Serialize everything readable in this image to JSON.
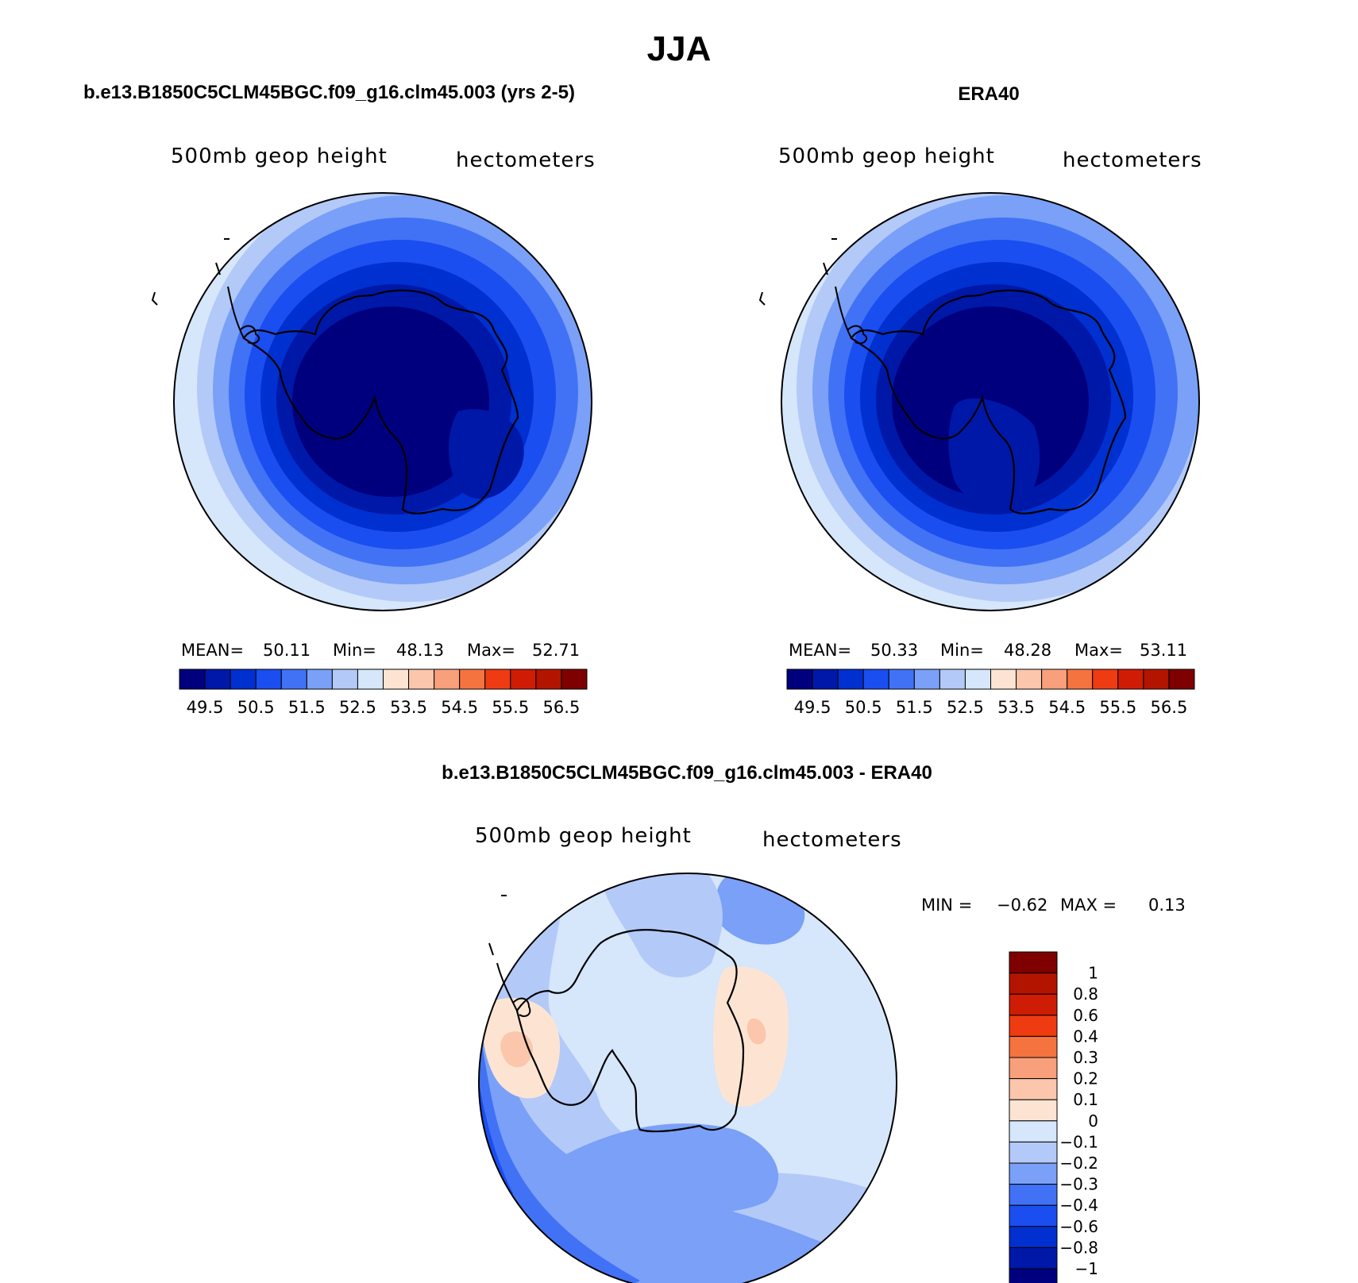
{
  "figure": {
    "season": "JJA"
  },
  "colors": {
    "abs_scale": [
      "#00007f",
      "#0018a8",
      "#0030cf",
      "#1a4ef0",
      "#4172f5",
      "#7aa0f7",
      "#b3c9f8",
      "#d6e6fb",
      "#fde4d2",
      "#fbc6ac",
      "#f89f7c",
      "#f5733f",
      "#ee3b12",
      "#cf1d05",
      "#b31400",
      "#7f0000"
    ],
    "diff_scale": [
      "#7f0000",
      "#b31400",
      "#cf1d05",
      "#ee3b12",
      "#f5733f",
      "#f89f7c",
      "#fbc6ac",
      "#fde4d2",
      "#d6e6fb",
      "#b3c9f8",
      "#7aa0f7",
      "#4172f5",
      "#1a4ef0",
      "#0030cf",
      "#0018a8",
      "#00007f"
    ],
    "coast": "#000000"
  },
  "chart_data": [
    {
      "type": "heatmap",
      "title": "b.e13.B1850C5CLM45BGC.f09_g16.clm45.003 (yrs 2-5)",
      "variable": "500mb geop height",
      "units": "hectometers",
      "stats": {
        "mean_label": "MEAN=",
        "mean": "50.11",
        "min_label": "Min=",
        "min": "48.13",
        "max_label": "Max=",
        "max": "52.71"
      },
      "colorbar_ticks": [
        "49.5",
        "50.5",
        "51.5",
        "52.5",
        "53.5",
        "54.5",
        "55.5",
        "56.5"
      ],
      "projection": "south polar stereographic",
      "field_level_bands": [
        0,
        1,
        2,
        3,
        4,
        5,
        6,
        7
      ]
    },
    {
      "type": "heatmap",
      "title": "ERA40",
      "variable": "500mb geop height",
      "units": "hectometers",
      "stats": {
        "mean_label": "MEAN=",
        "mean": "50.33",
        "min_label": "Min=",
        "min": "48.28",
        "max_label": "Max=",
        "max": "53.11"
      },
      "colorbar_ticks": [
        "49.5",
        "50.5",
        "51.5",
        "52.5",
        "53.5",
        "54.5",
        "55.5",
        "56.5"
      ],
      "projection": "south polar stereographic",
      "field_level_bands": [
        0,
        1,
        2,
        3,
        4,
        5,
        6,
        7
      ]
    },
    {
      "type": "heatmap",
      "title": "b.e13.B1850C5CLM45BGC.f09_g16.clm45.003 - ERA40",
      "variable": "500mb geop height",
      "units": "hectometers",
      "stats": {
        "min_label": "MIN =",
        "min": "−0.62",
        "max_label": "MAX =",
        "max": "0.13"
      },
      "colorbar_ticks": [
        "1",
        "0.8",
        "0.6",
        "0.4",
        "0.3",
        "0.2",
        "0.1",
        "0",
        "−0.1",
        "−0.2",
        "−0.3",
        "−0.4",
        "−0.6",
        "−0.8",
        "−1"
      ],
      "projection": "south polar stereographic"
    }
  ]
}
